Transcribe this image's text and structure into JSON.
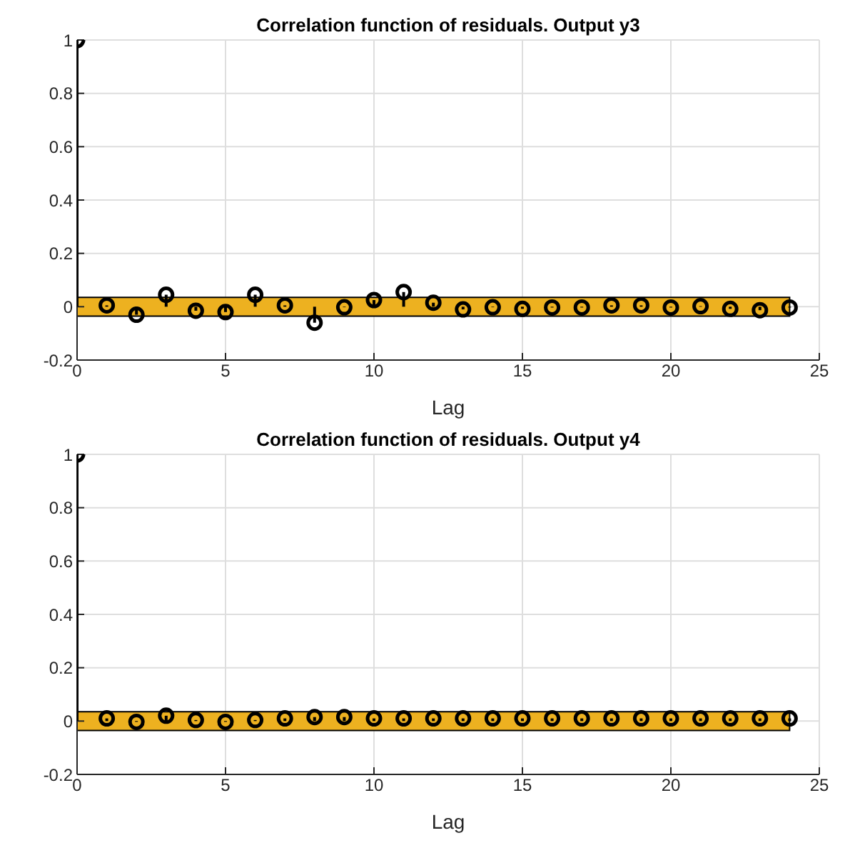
{
  "chart_data": [
    {
      "type": "lollipop",
      "title": "Correlation function of residuals. Output y3",
      "xlabel": "Lag",
      "x": [
        0,
        1,
        2,
        3,
        4,
        5,
        6,
        7,
        8,
        9,
        10,
        11,
        12,
        13,
        14,
        15,
        16,
        17,
        18,
        19,
        20,
        21,
        22,
        23,
        24
      ],
      "series": [
        {
          "color": "#000000",
          "values": [
            1,
            0.005,
            -0.03,
            0.045,
            -0.015,
            -0.02,
            0.045,
            0.005,
            -0.06,
            -0.002,
            0.025,
            0.055,
            0.015,
            -0.01,
            -0.002,
            -0.008,
            -0.003,
            -0.003,
            0.005,
            0.005,
            -0.003,
            0.002,
            -0.008,
            -0.013,
            -0.003
          ]
        }
      ],
      "bands": [
        {
          "axis": "y",
          "from": -0.035,
          "to": 0.035,
          "color": "#edb120"
        }
      ],
      "xlim": [
        0,
        25
      ],
      "xticks": [
        0,
        5,
        10,
        15,
        20,
        25
      ],
      "ylim": [
        -0.2,
        1
      ],
      "yticks": [
        -0.2,
        0,
        0.2,
        0.4,
        0.6,
        0.8,
        1
      ],
      "grid": true,
      "marker": "circle"
    },
    {
      "type": "lollipop",
      "title": "Correlation function of residuals. Output y4",
      "xlabel": "Lag",
      "x": [
        0,
        1,
        2,
        3,
        4,
        5,
        6,
        7,
        8,
        9,
        10,
        11,
        12,
        13,
        14,
        15,
        16,
        17,
        18,
        19,
        20,
        21,
        22,
        23,
        24
      ],
      "series": [
        {
          "color": "#000000",
          "values": [
            1,
            0.01,
            -0.003,
            0.02,
            0.004,
            -0.003,
            0.004,
            0.01,
            0.015,
            0.015,
            0.01,
            0.01,
            0.01,
            0.01,
            0.01,
            0.01,
            0.01,
            0.01,
            0.01,
            0.01,
            0.01,
            0.01,
            0.01,
            0.01,
            0.01
          ]
        }
      ],
      "bands": [
        {
          "axis": "y",
          "from": -0.035,
          "to": 0.035,
          "color": "#edb120"
        }
      ],
      "xlim": [
        0,
        25
      ],
      "xticks": [
        0,
        5,
        10,
        15,
        20,
        25
      ],
      "ylim": [
        -0.2,
        1
      ],
      "yticks": [
        -0.2,
        0,
        0.2,
        0.4,
        0.6,
        0.8,
        1
      ],
      "grid": true,
      "marker": "circle"
    }
  ]
}
